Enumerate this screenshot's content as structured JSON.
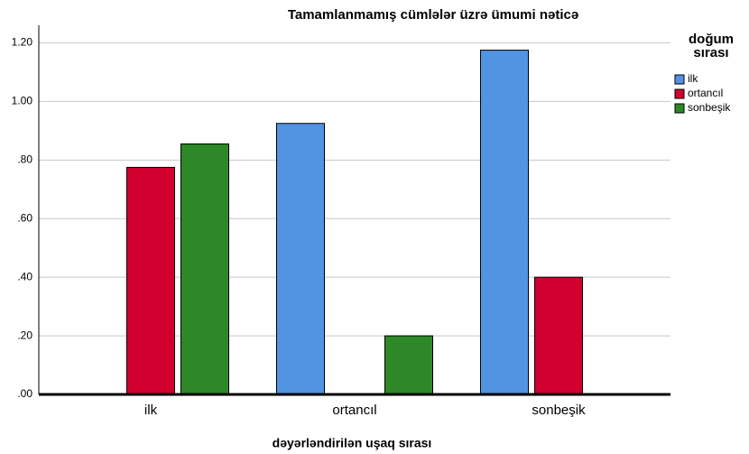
{
  "chart_data": {
    "type": "bar",
    "title": "Tamamlanmamış cümlələr üzrə ümumi nəticə",
    "xlabel": "dəyərləndirilən uşaq sırası",
    "legend_title": "doğum sırası",
    "legend": "right",
    "grid": true,
    "categories": [
      "ilk",
      "ortancıl",
      "sonbeşik"
    ],
    "series": [
      {
        "name": "ilk",
        "color": "#5294e2",
        "values": [
          null,
          0.925,
          1.175
        ]
      },
      {
        "name": "ortancıl",
        "color": "#d2002e",
        "values": [
          0.775,
          null,
          0.4
        ]
      },
      {
        "name": "sonbeşik",
        "color": "#2e8828",
        "values": [
          0.855,
          0.2,
          null
        ]
      }
    ],
    "ylim": [
      0,
      1.26
    ],
    "yticks": [
      {
        "value": 0,
        "label": ".00"
      },
      {
        "value": 0.2,
        "label": ".20"
      },
      {
        "value": 0.4,
        "label": ".40"
      },
      {
        "value": 0.6,
        "label": ".60"
      },
      {
        "value": 0.8,
        "label": ".80"
      },
      {
        "value": 1.0,
        "label": "1.00"
      },
      {
        "value": 1.2,
        "label": "1.20"
      }
    ]
  }
}
